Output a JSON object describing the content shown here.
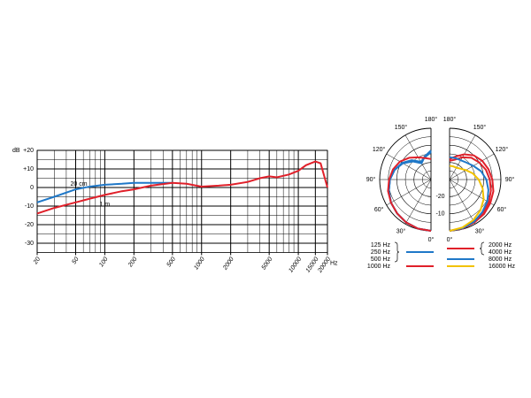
{
  "chart_data": [
    {
      "type": "line",
      "y_label": "dB",
      "x_label": "Hz",
      "x_scale": "log",
      "x": [
        20,
        30,
        50,
        70,
        100,
        150,
        200,
        300,
        500,
        700,
        1000,
        1500,
        2000,
        3000,
        4000,
        5000,
        6000,
        8000,
        10000,
        12000,
        15000,
        17000,
        20000
      ],
      "xlim": [
        20,
        20000
      ],
      "xticks": [
        20,
        50,
        100,
        200,
        500,
        1000,
        2000,
        5000,
        10000,
        15000,
        20000
      ],
      "x_minor_ticks": [
        30,
        40,
        60,
        70,
        80,
        90,
        300,
        400,
        600,
        700,
        800,
        900,
        3000,
        4000,
        6000,
        7000,
        8000,
        9000
      ],
      "ylim": [
        -35,
        20
      ],
      "yticks": [
        {
          "value": 20,
          "label": "+20"
        },
        {
          "value": 10,
          "label": "+10"
        },
        0,
        -10,
        -20,
        -30
      ],
      "y_minor_ticks": [
        -25,
        -15,
        -5,
        5,
        15
      ],
      "grid": true,
      "series": [
        {
          "name": "20 cm",
          "color": "#1f78c8",
          "values": [
            -8,
            -5,
            -1,
            0.5,
            1.5,
            2,
            2.5,
            2.5,
            2.5,
            null,
            null,
            null,
            null,
            null,
            null,
            null,
            null,
            null,
            null,
            null,
            null,
            null,
            null
          ]
        },
        {
          "name": "1 m",
          "color": "#e0202a",
          "values": [
            -14,
            -11,
            -8,
            -6,
            -4,
            -2,
            -1,
            1,
            2.5,
            2,
            0.5,
            1,
            1.5,
            3,
            5,
            6,
            5.5,
            7,
            9,
            12,
            14,
            13,
            0
          ]
        }
      ]
    },
    {
      "type": "polar",
      "angles": [
        0,
        15,
        30,
        45,
        60,
        75,
        90,
        105,
        120,
        135,
        150,
        165,
        180
      ],
      "angle_ticks": [
        {
          "value": 0,
          "label": "0°"
        },
        {
          "value": 30,
          "label": "30°"
        },
        {
          "value": 60,
          "label": "60°"
        },
        {
          "value": 90,
          "label": "90°"
        },
        {
          "value": 120,
          "label": "120°"
        },
        {
          "value": 150,
          "label": "150°"
        },
        {
          "value": 180,
          "label": "180°"
        }
      ],
      "rlim": [
        -30,
        0
      ],
      "rticks": [
        -20,
        -10
      ],
      "r_minor_ticks": [
        -25,
        -15,
        -5
      ],
      "series": [
        {
          "name": "125 Hz",
          "color": "#1f78c8",
          "side": "left",
          "values": [
            0,
            -0.3,
            -1,
            -2,
            -3,
            -4.5,
            -6,
            -8,
            -11,
            -15,
            -19,
            -16,
            -13
          ]
        },
        {
          "name": "250 Hz",
          "color": "#1f78c8",
          "side": "left",
          "values": [
            0,
            -0.3,
            -1,
            -2,
            -3,
            -4.5,
            -6,
            -8,
            -11,
            -14.5,
            -18.5,
            -16,
            -13.5
          ]
        },
        {
          "name": "500 Hz",
          "color": "#1f78c8",
          "side": "left",
          "values": [
            0,
            -0.3,
            -1,
            -2,
            -3,
            -4.5,
            -6,
            -8,
            -10.5,
            -14,
            -18,
            -16.5,
            -14
          ]
        },
        {
          "name": "1000 Hz",
          "color": "#e0202a",
          "side": "left",
          "values": [
            0,
            -0.3,
            -1,
            -2,
            -3,
            -4,
            -5.5,
            -7,
            -9,
            -12,
            -15,
            -17,
            -18
          ]
        },
        {
          "name": "2000 Hz",
          "color": "#e0202a",
          "side": "right",
          "values": [
            0,
            -0.3,
            -1,
            -1.5,
            -2.5,
            -3.5,
            -5,
            -6.5,
            -8,
            -10,
            -13,
            -16,
            -18
          ]
        },
        {
          "name": "4000 Hz",
          "color": "#e0202a",
          "side": "right",
          "values": [
            0,
            -0.5,
            -1.5,
            -2.5,
            -3.5,
            -5,
            -6.5,
            -8,
            -10,
            -12,
            -15,
            -18,
            -19
          ]
        },
        {
          "name": "8000 Hz",
          "color": "#1f78c8",
          "side": "right",
          "values": [
            0,
            -0.5,
            -1.5,
            -3,
            -4.5,
            -6.5,
            -8.5,
            -11,
            -14,
            -16,
            -17,
            -17,
            -17
          ]
        },
        {
          "name": "16000 Hz",
          "color": "#f2c200",
          "side": "right",
          "values": [
            0,
            -1,
            -2.5,
            -4.5,
            -7,
            -10,
            -13,
            -16,
            -19,
            -21,
            -22,
            -22,
            -22
          ]
        }
      ]
    }
  ]
}
